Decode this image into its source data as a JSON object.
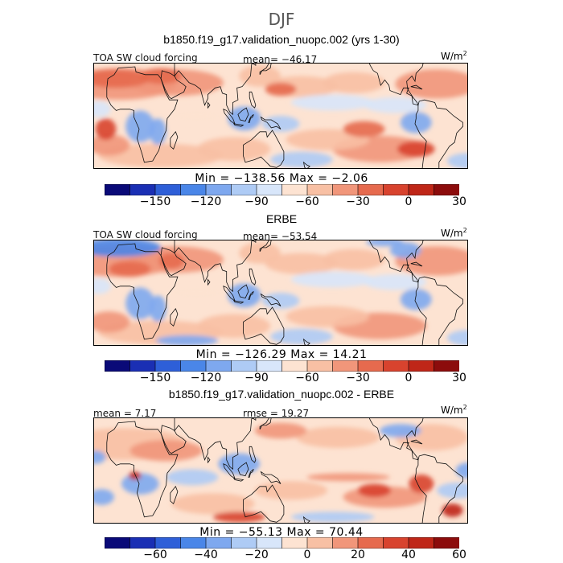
{
  "figure": {
    "season": "DJF"
  },
  "panels": [
    {
      "title": "b1850.f19_g17.validation_nuopc.002 (yrs 1-30)",
      "left_label": "TOA SW cloud forcing",
      "center_label": "mean= −46.17",
      "unit": "W/m",
      "unit_exp": "2",
      "min_max": "Min = −138.56  Max =  −2.06",
      "colorbar_ticks": [
        "−150",
        "−120",
        "−90",
        "−60",
        "−30",
        "0",
        "30"
      ],
      "field_type": "model"
    },
    {
      "title": "ERBE",
      "left_label": "TOA SW cloud forcing",
      "center_label": "mean= −53.54",
      "unit": "W/m",
      "unit_exp": "2",
      "min_max": "Min = −126.29  Max =  14.21",
      "colorbar_ticks": [
        "−150",
        "−120",
        "−90",
        "−60",
        "−30",
        "0",
        "30"
      ],
      "field_type": "obs"
    },
    {
      "title": "b1850.f19_g17.validation_nuopc.002 - ERBE",
      "left_label": "mean =   7.17",
      "center_label": "rmse =  19.27",
      "unit": "W/m",
      "unit_exp": "2",
      "min_max": "Min = −55.13  Max =  70.44",
      "colorbar_ticks": [
        "−60",
        "−40",
        "−20",
        "0",
        "20",
        "40",
        "60"
      ],
      "field_type": "diff"
    }
  ],
  "colorbar_colors": [
    "#0a0a78",
    "#1a2fb4",
    "#2e5fd8",
    "#4a86e8",
    "#7ea8ef",
    "#aecbf5",
    "#d8e6fa",
    "#fde3d2",
    "#f8c0a4",
    "#f1967a",
    "#e66a4e",
    "#d8432e",
    "#bf2618",
    "#8c0c0c"
  ]
}
